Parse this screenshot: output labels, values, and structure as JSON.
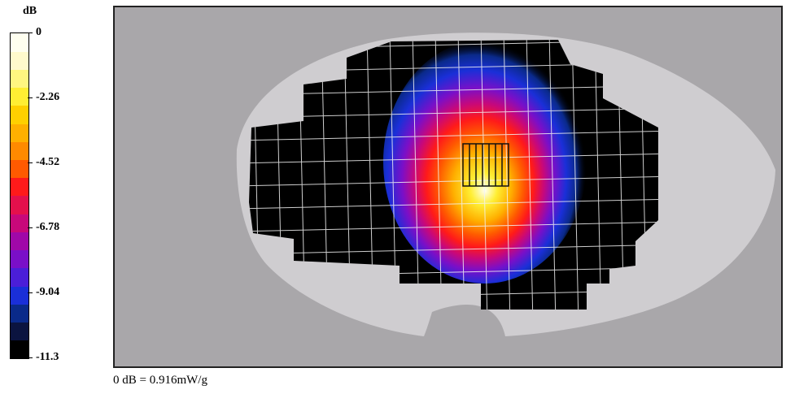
{
  "chart_data": {
    "type": "heatmap",
    "title": "",
    "unit_label": "dB",
    "colorbar": {
      "ticks": [
        0,
        -2.26,
        -4.52,
        -6.78,
        -9.04,
        -11.3
      ],
      "tick_labels": [
        "0",
        "-2.26",
        "-4.52",
        "-6.78",
        "-9.04",
        "-11.3"
      ],
      "range": [
        -11.3,
        0
      ],
      "colors": [
        "#000000",
        "#0b1440",
        "#0a2a8a",
        "#1a2fd8",
        "#4b1ed8",
        "#7a0fc8",
        "#a008a8",
        "#c8087a",
        "#e4104c",
        "#ff1a1a",
        "#ff5a00",
        "#ff8a00",
        "#ffb000",
        "#ffd000",
        "#ffee33",
        "#fff680",
        "#fffacc",
        "#fffff0"
      ]
    },
    "grid_lines": true,
    "footnote": "0 dB = 0.916mW/g"
  }
}
